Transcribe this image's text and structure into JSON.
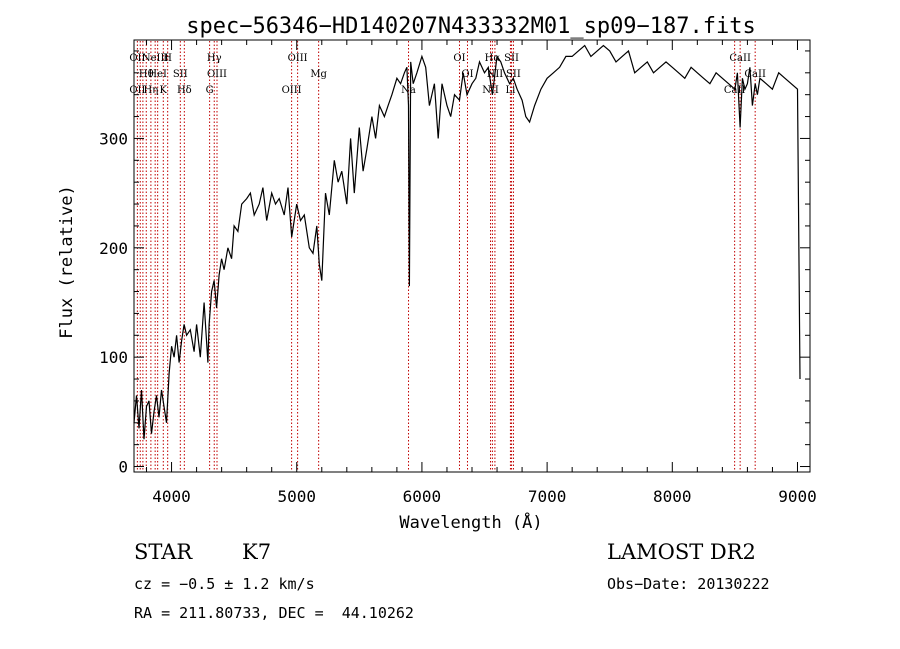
{
  "chart_data": {
    "type": "line",
    "title": "spec−56346−HD140207N433332M01_sp09−187.fits",
    "xlabel": "Wavelength (Å)",
    "ylabel": "Flux (relative)",
    "xlim": [
      3700,
      9100
    ],
    "ylim": [
      -5,
      390
    ],
    "xticks": [
      4000,
      5000,
      6000,
      7000,
      8000,
      9000
    ],
    "yticks": [
      0,
      100,
      200,
      300
    ],
    "grid": false,
    "series": [
      {
        "color": "#000000",
        "x": [
          3700,
          3720,
          3740,
          3760,
          3780,
          3800,
          3820,
          3840,
          3860,
          3880,
          3900,
          3920,
          3940,
          3960,
          3980,
          4000,
          4020,
          4040,
          4060,
          4080,
          4100,
          4120,
          4150,
          4180,
          4200,
          4230,
          4260,
          4290,
          4300,
          4320,
          4340,
          4360,
          4380,
          4400,
          4420,
          4450,
          4480,
          4500,
          4530,
          4560,
          4600,
          4630,
          4660,
          4700,
          4730,
          4760,
          4800,
          4830,
          4860,
          4900,
          4930,
          4960,
          5000,
          5030,
          5060,
          5100,
          5130,
          5160,
          5180,
          5200,
          5230,
          5260,
          5300,
          5330,
          5360,
          5400,
          5430,
          5460,
          5500,
          5530,
          5560,
          5600,
          5630,
          5660,
          5700,
          5730,
          5760,
          5800,
          5830,
          5860,
          5880,
          5893,
          5900,
          5910,
          5930,
          5960,
          6000,
          6030,
          6060,
          6100,
          6130,
          6160,
          6200,
          6230,
          6260,
          6300,
          6330,
          6360,
          6400,
          6430,
          6460,
          6500,
          6530,
          6563,
          6600,
          6630,
          6660,
          6700,
          6730,
          6760,
          6800,
          6830,
          6860,
          6900,
          6950,
          7000,
          7050,
          7100,
          7150,
          7200,
          7250,
          7300,
          7350,
          7400,
          7450,
          7500,
          7550,
          7600,
          7650,
          7700,
          7750,
          7800,
          7850,
          7900,
          7950,
          8000,
          8050,
          8100,
          8150,
          8200,
          8250,
          8300,
          8350,
          8400,
          8450,
          8500,
          8520,
          8542,
          8560,
          8580,
          8600,
          8620,
          8640,
          8662,
          8680,
          8700,
          8750,
          8800,
          8850,
          8900,
          8950,
          9000,
          9020
        ],
        "y": [
          40,
          65,
          35,
          70,
          25,
          55,
          60,
          30,
          50,
          65,
          45,
          70,
          55,
          40,
          85,
          110,
          100,
          120,
          95,
          115,
          130,
          120,
          125,
          105,
          130,
          100,
          150,
          95,
          130,
          160,
          170,
          145,
          175,
          190,
          180,
          200,
          190,
          220,
          215,
          240,
          245,
          250,
          230,
          240,
          255,
          225,
          250,
          240,
          245,
          230,
          255,
          210,
          240,
          225,
          230,
          200,
          195,
          220,
          185,
          170,
          250,
          230,
          280,
          260,
          270,
          240,
          300,
          250,
          310,
          270,
          290,
          320,
          300,
          330,
          320,
          330,
          340,
          355,
          350,
          360,
          365,
          330,
          165,
          370,
          350,
          360,
          375,
          365,
          330,
          350,
          300,
          350,
          330,
          320,
          340,
          335,
          360,
          340,
          350,
          355,
          370,
          360,
          365,
          340,
          375,
          370,
          360,
          350,
          355,
          345,
          335,
          320,
          315,
          330,
          345,
          355,
          360,
          365,
          375,
          375,
          380,
          385,
          375,
          380,
          385,
          380,
          370,
          375,
          380,
          360,
          365,
          370,
          360,
          365,
          370,
          365,
          360,
          355,
          365,
          360,
          355,
          350,
          360,
          355,
          350,
          345,
          360,
          310,
          355,
          345,
          350,
          365,
          330,
          350,
          340,
          355,
          350,
          345,
          360,
          355,
          350,
          345,
          80
        ]
      }
    ],
    "line_markers": [
      {
        "x": 3727,
        "labels": [
          "OII",
          "OII"
        ]
      },
      {
        "x": 3750,
        "labels": [
          ""
        ]
      },
      {
        "x": 3771,
        "labels": [
          ""
        ]
      },
      {
        "x": 3798,
        "labels": [
          "Hθ"
        ]
      },
      {
        "x": 3835,
        "labels": [
          "Hη"
        ]
      },
      {
        "x": 3869,
        "labels": [
          "NeIII"
        ]
      },
      {
        "x": 3889,
        "labels": [
          "HeI"
        ]
      },
      {
        "x": 3934,
        "labels": [
          "K"
        ]
      },
      {
        "x": 3969,
        "labels": [
          "H"
        ]
      },
      {
        "x": 4070,
        "labels": [
          "SII"
        ]
      },
      {
        "x": 4102,
        "labels": [
          "Hδ"
        ]
      },
      {
        "x": 4304,
        "labels": [
          "G"
        ]
      },
      {
        "x": 4341,
        "labels": [
          "Hγ"
        ]
      },
      {
        "x": 4363,
        "labels": [
          "OIII"
        ]
      },
      {
        "x": 4959,
        "labels": [
          "OIII"
        ]
      },
      {
        "x": 5007,
        "labels": [
          "OIII"
        ]
      },
      {
        "x": 5175,
        "labels": [
          "Mg"
        ]
      },
      {
        "x": 5893,
        "labels": [
          "Na"
        ]
      },
      {
        "x": 6300,
        "labels": [
          "OI"
        ]
      },
      {
        "x": 6364,
        "labels": [
          "OI"
        ]
      },
      {
        "x": 6548,
        "labels": [
          "NII"
        ]
      },
      {
        "x": 6563,
        "labels": [
          "Hα"
        ]
      },
      {
        "x": 6583,
        "labels": [
          "NII"
        ]
      },
      {
        "x": 6707,
        "labels": [
          "Li"
        ]
      },
      {
        "x": 6716,
        "labels": [
          "SII"
        ]
      },
      {
        "x": 6731,
        "labels": [
          "SII"
        ]
      },
      {
        "x": 8498,
        "labels": [
          "CaII"
        ]
      },
      {
        "x": 8542,
        "labels": [
          "CaII"
        ]
      },
      {
        "x": 8662,
        "labels": [
          "CaII"
        ]
      }
    ]
  },
  "info": {
    "class_label": "STAR",
    "subclass": "K7",
    "survey": "LAMOST DR2",
    "cz": "cz = −0.5 ± 1.2 km/s",
    "obs_date": "Obs−Date: 20130222",
    "radec": "RA = 211.80733, DEC =  44.10262"
  }
}
